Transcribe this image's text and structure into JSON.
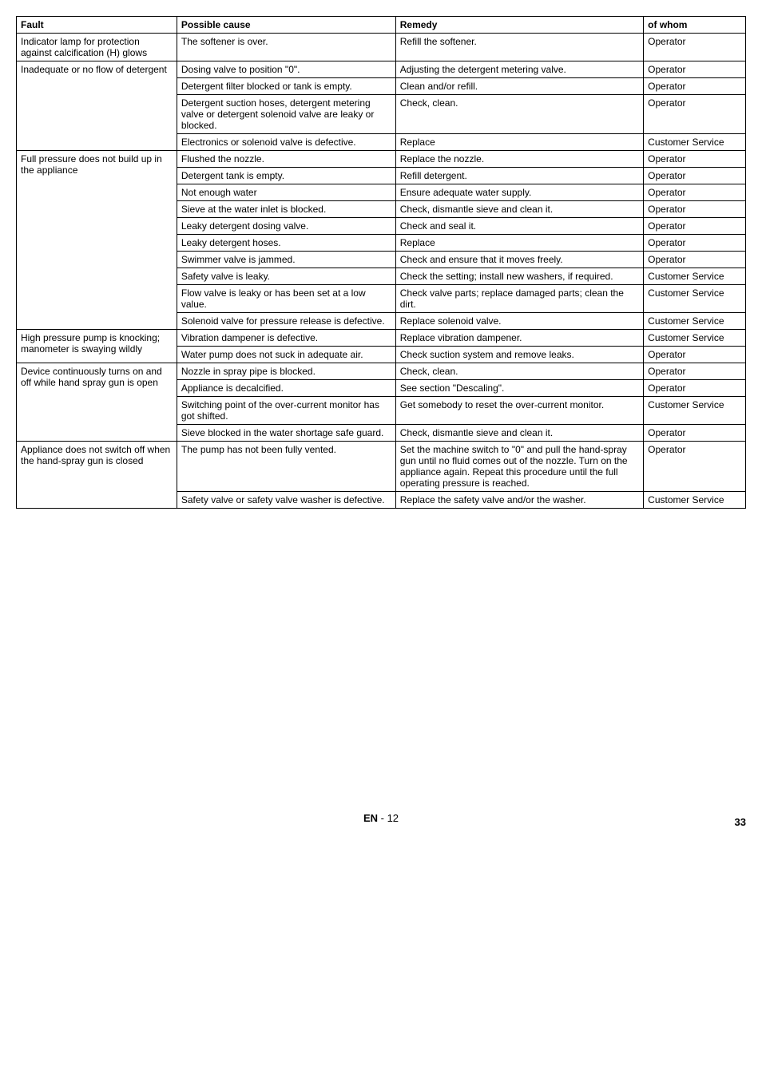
{
  "headers": {
    "fault": "Fault",
    "cause": "Possible cause",
    "remedy": "Remedy",
    "whom": "of whom"
  },
  "groups": [
    {
      "fault": "Indicator lamp for protection against calcification (H) glows",
      "rows": [
        {
          "cause": "The softener is over.",
          "remedy": "Refill the softener.",
          "whom": "Operator"
        }
      ]
    },
    {
      "fault": "Inadequate or no flow of detergent",
      "rows": [
        {
          "cause": "Dosing valve to position \"0\".",
          "remedy": "Adjusting the detergent metering valve.",
          "whom": "Operator"
        },
        {
          "cause": "Detergent filter blocked or tank is empty.",
          "remedy": "Clean and/or refill.",
          "whom": "Operator"
        },
        {
          "cause": "Detergent suction hoses, detergent metering valve or detergent solenoid valve are leaky or blocked.",
          "remedy": "Check, clean.",
          "whom": "Operator"
        },
        {
          "cause": "Electronics or solenoid valve is defective.",
          "remedy": "Replace",
          "whom": "Customer Service"
        }
      ]
    },
    {
      "fault": "Full pressure does not build up in the appliance",
      "rows": [
        {
          "cause": "Flushed the nozzle.",
          "remedy": "Replace the nozzle.",
          "whom": "Operator"
        },
        {
          "cause": "Detergent tank is empty.",
          "remedy": "Refill detergent.",
          "whom": "Operator"
        },
        {
          "cause": "Not enough water",
          "remedy": "Ensure adequate water supply.",
          "whom": "Operator"
        },
        {
          "cause": "Sieve at the water inlet is blocked.",
          "remedy": "Check, dismantle sieve and clean it.",
          "whom": "Operator"
        },
        {
          "cause": "Leaky detergent dosing valve.",
          "remedy": "Check and seal it.",
          "whom": "Operator"
        },
        {
          "cause": "Leaky detergent hoses.",
          "remedy": "Replace",
          "whom": "Operator"
        },
        {
          "cause": "Swimmer valve is jammed.",
          "remedy": "Check and ensure that it moves freely.",
          "whom": "Operator"
        },
        {
          "cause": "Safety valve is leaky.",
          "remedy": "Check the setting; install new washers, if required.",
          "whom": "Customer Service"
        },
        {
          "cause": "Flow valve is leaky or has been set at a low value.",
          "remedy": "Check valve parts; replace damaged parts; clean the dirt.",
          "whom": "Customer Service"
        },
        {
          "cause": "Solenoid valve for pressure release is defective.",
          "remedy": "Replace solenoid valve.",
          "whom": "Customer Service"
        }
      ]
    },
    {
      "fault": "High pressure pump is knocking; manometer is swaying wildly",
      "rows": [
        {
          "cause": "Vibration dampener is defective.",
          "remedy": "Replace vibration dampener.",
          "whom": "Customer Service"
        },
        {
          "cause": "Water pump does not suck in adequate air.",
          "remedy": "Check suction system and remove leaks.",
          "whom": "Operator"
        }
      ]
    },
    {
      "fault": "Device continuously turns on and off while hand spray gun is open",
      "rows": [
        {
          "cause": "Nozzle in spray pipe is blocked.",
          "remedy": "Check, clean.",
          "whom": "Operator"
        },
        {
          "cause": "Appliance is decalcified.",
          "remedy": "See section \"Descaling\".",
          "whom": "Operator"
        },
        {
          "cause": "Switching point of the over-current monitor has got shifted.",
          "remedy": "Get somebody to reset the over-current monitor.",
          "whom": "Customer Service"
        },
        {
          "cause": "Sieve blocked in the water shortage safe guard.",
          "remedy": "Check, dismantle sieve and clean it.",
          "whom": "Operator"
        }
      ]
    },
    {
      "fault": "Appliance does not switch off when the hand-spray gun is closed",
      "rows": [
        {
          "cause": "The pump has not been fully vented.",
          "remedy": "Set the machine switch to \"0\" and pull the hand-spray gun until no fluid comes out of the nozzle. Turn on the appliance again. Repeat this procedure until the full operating pressure is reached.",
          "whom": "Operator"
        },
        {
          "cause": "Safety valve or safety valve washer is defective.",
          "remedy": "Replace the safety valve and/or the washer.",
          "whom": "Customer Service"
        }
      ]
    }
  ],
  "footer": {
    "lang": "EN",
    "page_inner": "- 12",
    "page_outer": "33"
  }
}
